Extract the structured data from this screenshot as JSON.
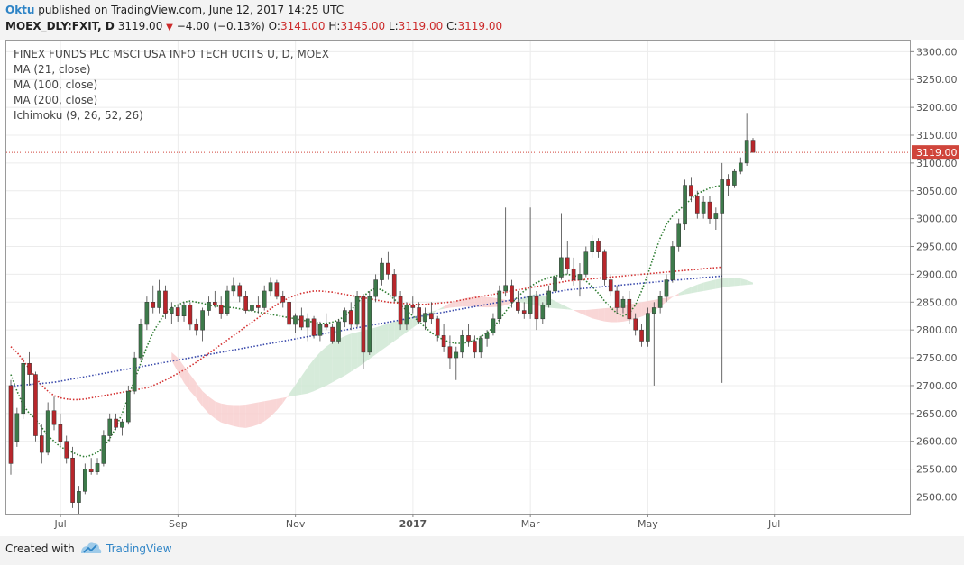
{
  "header": {
    "author": "Oktu",
    "published": "published on TradingView.com, June 12, 2017 14:25 UTC",
    "symbol": "MOEX_DLY:FXIT, D",
    "last": "3119.00",
    "arrow": "▼",
    "change": "−4.00 (−0.13%)",
    "o_label": "O:",
    "o_value": "3141.00",
    "h_label": "H:",
    "h_value": "3145.00",
    "l_label": "L:",
    "l_value": "3119.00",
    "c_label": "C:",
    "c_value": "3119.00"
  },
  "legend": {
    "title": "FINEX FUNDS PLC MSCI USA INFO TECH UCITS  U, D, MOEX",
    "ma21": "MA (21, close)",
    "ma100": "MA (100, close)",
    "ma200": "MA (200, close)",
    "ichimoku": "Ichimoku (9, 26, 52, 26)"
  },
  "footer": {
    "created": "Created with",
    "brand": "TradingView"
  },
  "chart_data": {
    "type": "candlestick",
    "price_axis": {
      "min": 2470,
      "max": 3320,
      "ticks": [
        2500,
        2550,
        2600,
        2650,
        2700,
        2750,
        2800,
        2850,
        2900,
        2950,
        3000,
        3050,
        3100,
        3150,
        3200,
        3250,
        3300
      ],
      "tick_labels": [
        "2500.00",
        "2550.00",
        "2600.00",
        "2650.00",
        "2700.00",
        "2750.00",
        "2800.00",
        "2850.00",
        "2900.00",
        "2950.00",
        "3000.00",
        "3050.00",
        "3100.00",
        "3150.00",
        "3200.00",
        "3250.00",
        "3300.00"
      ],
      "last_price": 3119,
      "last_label": "3119.00",
      "last_color": "#d0453b"
    },
    "time_axis": {
      "labels": [
        "Jul",
        "Sep",
        "Nov",
        "2017",
        "Mar",
        "May",
        "Jul"
      ],
      "label_positions": [
        0.06,
        0.19,
        0.32,
        0.45,
        0.58,
        0.71,
        0.85
      ]
    },
    "colors": {
      "up": "#3d7a4a",
      "down": "#b8262b",
      "ma21": "#2e7d32",
      "ma100": "#d32f2f",
      "ma200": "#3949ab",
      "cloud_bull": "#cfe8d3",
      "cloud_bear": "#f8cfcf"
    },
    "candles": [
      [
        2700,
        2710,
        2540,
        2560
      ],
      [
        2600,
        2660,
        2590,
        2650
      ],
      [
        2650,
        2750,
        2640,
        2740
      ],
      [
        2740,
        2760,
        2700,
        2720
      ],
      [
        2720,
        2725,
        2600,
        2610
      ],
      [
        2610,
        2630,
        2560,
        2580
      ],
      [
        2580,
        2670,
        2575,
        2655
      ],
      [
        2655,
        2680,
        2620,
        2630
      ],
      [
        2630,
        2650,
        2590,
        2600
      ],
      [
        2600,
        2610,
        2560,
        2570
      ],
      [
        2570,
        2590,
        2480,
        2490
      ],
      [
        2490,
        2520,
        2470,
        2510
      ],
      [
        2510,
        2560,
        2505,
        2550
      ],
      [
        2550,
        2570,
        2540,
        2545
      ],
      [
        2545,
        2570,
        2540,
        2560
      ],
      [
        2560,
        2620,
        2555,
        2610
      ],
      [
        2610,
        2650,
        2600,
        2640
      ],
      [
        2640,
        2650,
        2620,
        2625
      ],
      [
        2625,
        2640,
        2610,
        2635
      ],
      [
        2635,
        2700,
        2630,
        2690
      ],
      [
        2690,
        2760,
        2685,
        2750
      ],
      [
        2750,
        2820,
        2745,
        2810
      ],
      [
        2810,
        2860,
        2800,
        2850
      ],
      [
        2850,
        2880,
        2830,
        2840
      ],
      [
        2840,
        2890,
        2830,
        2870
      ],
      [
        2870,
        2880,
        2820,
        2830
      ],
      [
        2830,
        2850,
        2810,
        2840
      ],
      [
        2840,
        2845,
        2815,
        2825
      ],
      [
        2825,
        2850,
        2815,
        2845
      ],
      [
        2845,
        2850,
        2800,
        2810
      ],
      [
        2810,
        2820,
        2790,
        2800
      ],
      [
        2800,
        2840,
        2780,
        2835
      ],
      [
        2835,
        2860,
        2825,
        2850
      ],
      [
        2850,
        2870,
        2840,
        2845
      ],
      [
        2845,
        2860,
        2820,
        2830
      ],
      [
        2830,
        2880,
        2825,
        2870
      ],
      [
        2870,
        2895,
        2860,
        2880
      ],
      [
        2880,
        2885,
        2850,
        2860
      ],
      [
        2860,
        2870,
        2830,
        2835
      ],
      [
        2835,
        2850,
        2820,
        2845
      ],
      [
        2845,
        2860,
        2830,
        2840
      ],
      [
        2840,
        2880,
        2835,
        2870
      ],
      [
        2870,
        2895,
        2860,
        2885
      ],
      [
        2885,
        2890,
        2855,
        2860
      ],
      [
        2860,
        2870,
        2840,
        2850
      ],
      [
        2850,
        2855,
        2800,
        2810
      ],
      [
        2810,
        2830,
        2795,
        2825
      ],
      [
        2825,
        2840,
        2800,
        2805
      ],
      [
        2805,
        2830,
        2780,
        2820
      ],
      [
        2820,
        2825,
        2785,
        2790
      ],
      [
        2790,
        2815,
        2780,
        2810
      ],
      [
        2810,
        2830,
        2800,
        2805
      ],
      [
        2805,
        2810,
        2775,
        2780
      ],
      [
        2780,
        2820,
        2775,
        2815
      ],
      [
        2815,
        2840,
        2805,
        2835
      ],
      [
        2835,
        2850,
        2800,
        2810
      ],
      [
        2810,
        2870,
        2805,
        2860
      ],
      [
        2860,
        2865,
        2730,
        2760
      ],
      [
        2760,
        2870,
        2755,
        2860
      ],
      [
        2860,
        2900,
        2850,
        2890
      ],
      [
        2890,
        2930,
        2880,
        2920
      ],
      [
        2920,
        2940,
        2890,
        2900
      ],
      [
        2900,
        2910,
        2850,
        2860
      ],
      [
        2860,
        2870,
        2800,
        2810
      ],
      [
        2810,
        2850,
        2800,
        2845
      ],
      [
        2845,
        2860,
        2830,
        2840
      ],
      [
        2840,
        2850,
        2810,
        2815
      ],
      [
        2815,
        2840,
        2800,
        2830
      ],
      [
        2830,
        2850,
        2810,
        2820
      ],
      [
        2820,
        2825,
        2780,
        2790
      ],
      [
        2790,
        2810,
        2760,
        2770
      ],
      [
        2770,
        2790,
        2730,
        2750
      ],
      [
        2750,
        2770,
        2710,
        2760
      ],
      [
        2760,
        2800,
        2750,
        2790
      ],
      [
        2790,
        2810,
        2770,
        2780
      ],
      [
        2780,
        2790,
        2750,
        2760
      ],
      [
        2760,
        2790,
        2750,
        2785
      ],
      [
        2785,
        2800,
        2770,
        2795
      ],
      [
        2795,
        2830,
        2790,
        2820
      ],
      [
        2820,
        2880,
        2810,
        2870
      ],
      [
        2870,
        3020,
        2860,
        2880
      ],
      [
        2880,
        2890,
        2840,
        2850
      ],
      [
        2850,
        2870,
        2830,
        2835
      ],
      [
        2835,
        2850,
        2820,
        2830
      ],
      [
        2830,
        3020,
        2820,
        2860
      ],
      [
        2860,
        2870,
        2800,
        2820
      ],
      [
        2820,
        2850,
        2810,
        2845
      ],
      [
        2845,
        2880,
        2840,
        2870
      ],
      [
        2870,
        2900,
        2860,
        2895
      ],
      [
        2895,
        3010,
        2890,
        2930
      ],
      [
        2930,
        2960,
        2900,
        2910
      ],
      [
        2910,
        2930,
        2880,
        2890
      ],
      [
        2890,
        2920,
        2860,
        2900
      ],
      [
        2900,
        2950,
        2895,
        2940
      ],
      [
        2940,
        2970,
        2930,
        2960
      ],
      [
        2960,
        2965,
        2930,
        2940
      ],
      [
        2940,
        2945,
        2880,
        2890
      ],
      [
        2890,
        2900,
        2860,
        2870
      ],
      [
        2870,
        2880,
        2830,
        2840
      ],
      [
        2840,
        2860,
        2830,
        2855
      ],
      [
        2855,
        2870,
        2810,
        2820
      ],
      [
        2820,
        2830,
        2790,
        2800
      ],
      [
        2800,
        2810,
        2770,
        2780
      ],
      [
        2780,
        2840,
        2770,
        2830
      ],
      [
        2830,
        2850,
        2700,
        2840
      ],
      [
        2840,
        2870,
        2830,
        2860
      ],
      [
        2860,
        2900,
        2850,
        2890
      ],
      [
        2890,
        2960,
        2885,
        2950
      ],
      [
        2950,
        3000,
        2940,
        2990
      ],
      [
        2990,
        3070,
        2980,
        3060
      ],
      [
        3060,
        3075,
        3030,
        3040
      ],
      [
        3040,
        3050,
        3000,
        3010
      ],
      [
        3010,
        3040,
        3000,
        3030
      ],
      [
        3030,
        3040,
        2990,
        3000
      ],
      [
        3000,
        3020,
        2980,
        3010
      ],
      [
        3010,
        3100,
        2705,
        3070
      ],
      [
        3070,
        3080,
        3040,
        3060
      ],
      [
        3060,
        3090,
        3055,
        3085
      ],
      [
        3085,
        3110,
        3080,
        3100
      ],
      [
        3100,
        3190,
        3095,
        3141
      ],
      [
        3141,
        3145,
        3119,
        3119
      ]
    ],
    "ma21": [
      2720,
      2690,
      2665,
      2650,
      2640,
      2625,
      2610,
      2600,
      2590,
      2585,
      2580,
      2575,
      2572,
      2575,
      2580,
      2590,
      2605,
      2625,
      2650,
      2680,
      2710,
      2740,
      2770,
      2795,
      2815,
      2830,
      2840,
      2845,
      2850,
      2852,
      2850,
      2848,
      2845,
      2843,
      2842,
      2841,
      2840,
      2838,
      2836,
      2834,
      2832,
      2830,
      2828,
      2826,
      2824,
      2822,
      2820,
      2818,
      2816,
      2814,
      2812,
      2812,
      2814,
      2818,
      2825,
      2835,
      2848,
      2860,
      2870,
      2875,
      2872,
      2865,
      2855,
      2845,
      2835,
      2825,
      2815,
      2805,
      2795,
      2788,
      2782,
      2778,
      2776,
      2776,
      2778,
      2782,
      2788,
      2795,
      2805,
      2818,
      2833,
      2848,
      2860,
      2870,
      2878,
      2885,
      2890,
      2894,
      2897,
      2899,
      2900,
      2898,
      2895,
      2888,
      2878,
      2866,
      2852,
      2840,
      2830,
      2825,
      2830,
      2845,
      2870,
      2900,
      2935,
      2965,
      2990,
      3005,
      3015,
      3025,
      3035,
      3045,
      3050,
      3055,
      3058,
      3060
    ],
    "ma100": [
      2770,
      2760,
      2745,
      2730,
      2715,
      2700,
      2690,
      2682,
      2678,
      2676,
      2675,
      2675,
      2676,
      2678,
      2680,
      2682,
      2684,
      2686,
      2688,
      2690,
      2692,
      2694,
      2696,
      2700,
      2705,
      2710,
      2716,
      2722,
      2728,
      2735,
      2742,
      2750,
      2758,
      2766,
      2774,
      2782,
      2790,
      2798,
      2806,
      2814,
      2822,
      2830,
      2838,
      2846,
      2852,
      2858,
      2862,
      2866,
      2868,
      2870,
      2870,
      2869,
      2868,
      2866,
      2864,
      2862,
      2860,
      2858,
      2856,
      2854,
      2852,
      2850,
      2849,
      2848,
      2847,
      2846,
      2846,
      2846,
      2847,
      2848,
      2849,
      2850,
      2852,
      2854,
      2856,
      2858,
      2860,
      2862,
      2864,
      2866,
      2868,
      2870,
      2872,
      2874,
      2876,
      2878,
      2880,
      2882,
      2884,
      2886,
      2888,
      2889,
      2890,
      2891,
      2892,
      2893,
      2894,
      2895,
      2896,
      2897,
      2898,
      2899,
      2900,
      2901,
      2902,
      2903,
      2904,
      2905,
      2906,
      2907,
      2908,
      2909,
      2910,
      2911,
      2912,
      2913
    ],
    "ma200": [
      2700,
      2700,
      2701,
      2702,
      2703,
      2704,
      2705,
      2706,
      2708,
      2710,
      2712,
      2714,
      2716,
      2718,
      2720,
      2722,
      2724,
      2726,
      2728,
      2730,
      2732,
      2734,
      2736,
      2738,
      2740,
      2742,
      2744,
      2746,
      2748,
      2750,
      2752,
      2754,
      2756,
      2758,
      2760,
      2762,
      2764,
      2766,
      2768,
      2770,
      2772,
      2774,
      2776,
      2778,
      2780,
      2782,
      2784,
      2786,
      2788,
      2790,
      2792,
      2794,
      2796,
      2798,
      2800,
      2802,
      2804,
      2806,
      2808,
      2810,
      2812,
      2814,
      2816,
      2818,
      2820,
      2822,
      2824,
      2826,
      2828,
      2830,
      2832,
      2834,
      2836,
      2838,
      2840,
      2842,
      2844,
      2846,
      2848,
      2850,
      2852,
      2854,
      2856,
      2858,
      2860,
      2862,
      2864,
      2866,
      2868,
      2870,
      2872,
      2873,
      2874,
      2875,
      2876,
      2877,
      2878,
      2879,
      2880,
      2881,
      2882,
      2883,
      2884,
      2885,
      2886,
      2887,
      2888,
      2889,
      2890,
      2891,
      2892,
      2893,
      2894,
      2895,
      2896,
      2897
    ]
  }
}
